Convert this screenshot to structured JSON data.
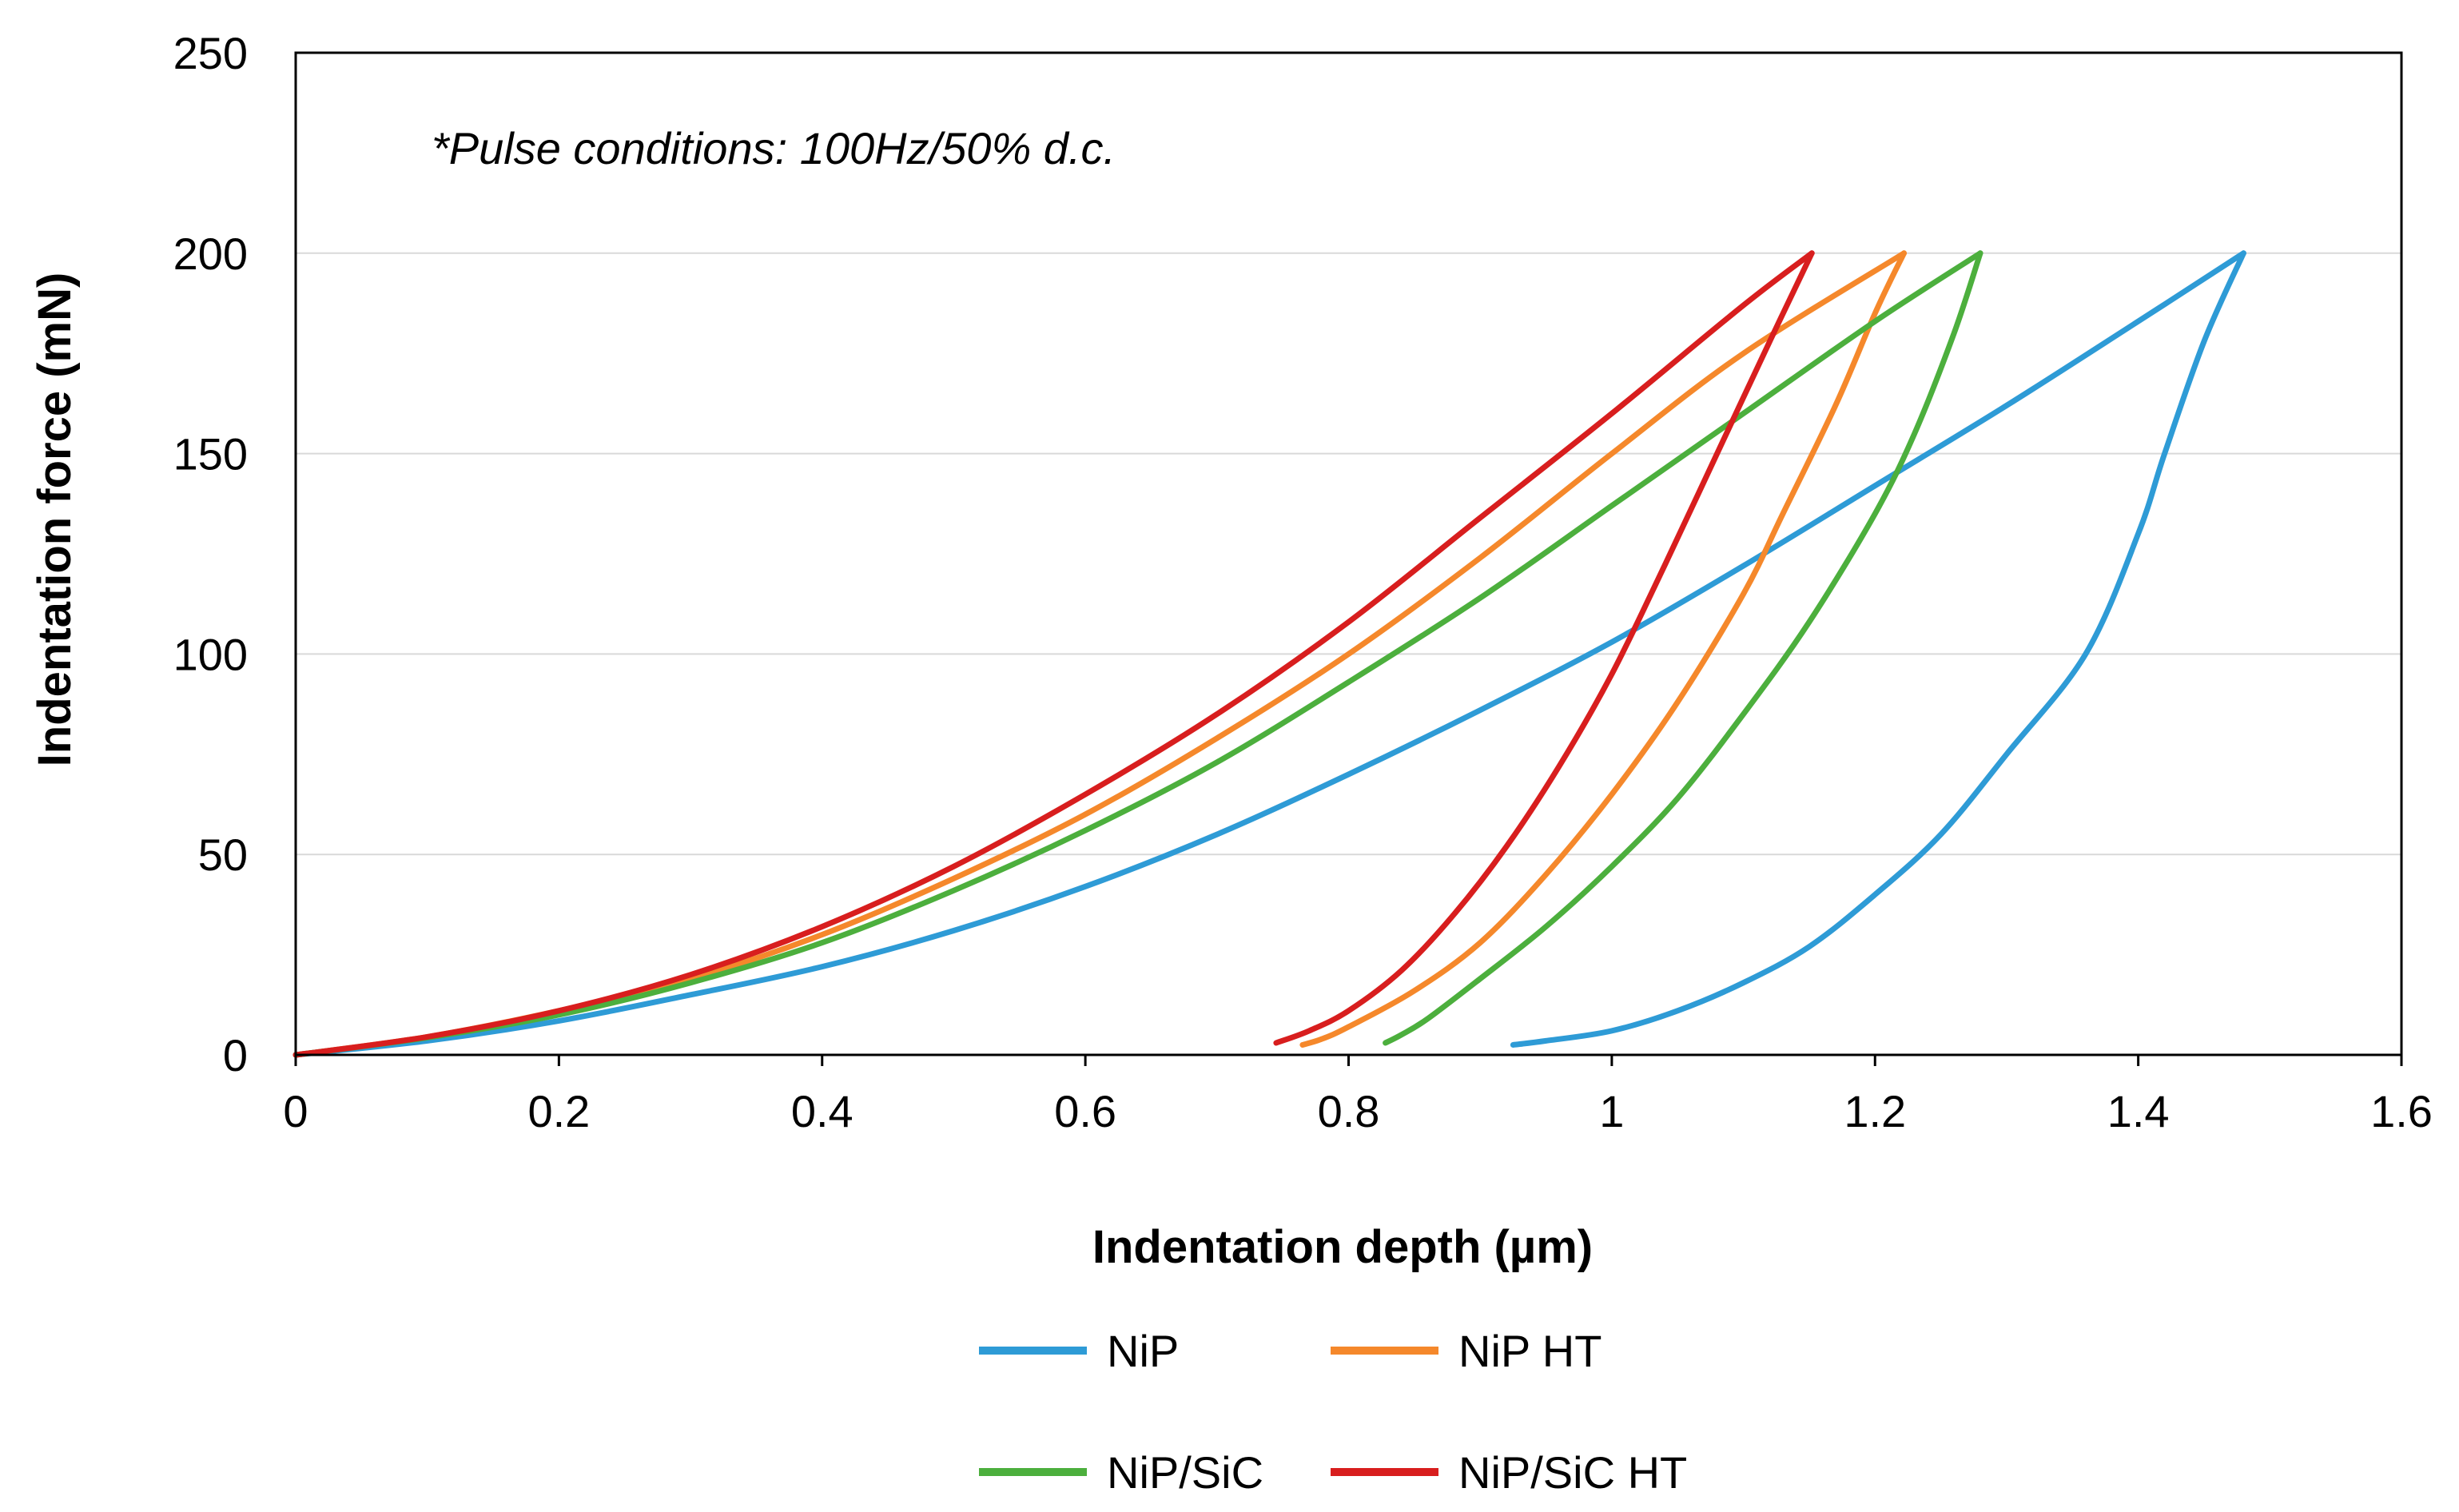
{
  "chart_data": {
    "type": "line",
    "title": "",
    "annotation": "*Pulse conditions: 100Hz/50% d.c.",
    "xlabel": "Indentation depth (µm)",
    "ylabel": "Indentation force (mN)",
    "xlim": [
      0,
      1.6
    ],
    "ylim": [
      0,
      250
    ],
    "xticks": [
      0,
      0.2,
      0.4,
      0.6,
      0.8,
      1.0,
      1.2,
      1.4,
      1.6
    ],
    "xtick_labels": [
      "0",
      "0.2",
      "0.4",
      "0.6",
      "0.8",
      "1",
      "1.2",
      "1.4",
      "1.6"
    ],
    "yticks": [
      0,
      50,
      100,
      150,
      200,
      250
    ],
    "ytick_labels": [
      "0",
      "50",
      "100",
      "150",
      "200",
      "250"
    ],
    "grid": "horizontal",
    "legend_position": "bottom",
    "series": [
      {
        "name": "NiP",
        "color": "#2e9bd6",
        "loading": [
          [
            0,
            0
          ],
          [
            0.1,
            3.5
          ],
          [
            0.2,
            8.5
          ],
          [
            0.3,
            15
          ],
          [
            0.4,
            22
          ],
          [
            0.5,
            31
          ],
          [
            0.6,
            42
          ],
          [
            0.7,
            55
          ],
          [
            0.8,
            70
          ],
          [
            0.9,
            86
          ],
          [
            1.0,
            103
          ],
          [
            1.1,
            122
          ],
          [
            1.2,
            142
          ],
          [
            1.3,
            162
          ],
          [
            1.4,
            183
          ],
          [
            1.48,
            200
          ]
        ],
        "unloading": [
          [
            1.48,
            200
          ],
          [
            1.45,
            178
          ],
          [
            1.42,
            150
          ],
          [
            1.4,
            130
          ],
          [
            1.36,
            100
          ],
          [
            1.3,
            75
          ],
          [
            1.25,
            55
          ],
          [
            1.2,
            40
          ],
          [
            1.15,
            27
          ],
          [
            1.1,
            18
          ],
          [
            1.05,
            11
          ],
          [
            1.0,
            6
          ],
          [
            0.95,
            3.5
          ],
          [
            0.925,
            2.5
          ]
        ]
      },
      {
        "name": "NiP HT",
        "color": "#f5882b",
        "loading": [
          [
            0,
            0
          ],
          [
            0.1,
            4.5
          ],
          [
            0.2,
            11
          ],
          [
            0.3,
            19
          ],
          [
            0.4,
            30
          ],
          [
            0.5,
            44
          ],
          [
            0.6,
            60
          ],
          [
            0.7,
            79
          ],
          [
            0.8,
            100
          ],
          [
            0.9,
            124
          ],
          [
            1.0,
            150
          ],
          [
            1.1,
            175
          ],
          [
            1.222,
            200
          ]
        ],
        "unloading": [
          [
            1.222,
            200
          ],
          [
            1.2,
            185
          ],
          [
            1.17,
            162
          ],
          [
            1.13,
            135
          ],
          [
            1.1,
            115
          ],
          [
            1.05,
            88
          ],
          [
            1.0,
            65
          ],
          [
            0.95,
            45
          ],
          [
            0.9,
            28
          ],
          [
            0.85,
            16
          ],
          [
            0.8,
            7
          ],
          [
            0.78,
            4
          ],
          [
            0.765,
            2.5
          ]
        ]
      },
      {
        "name": "NiP/SiC",
        "color": "#4caf3d",
        "loading": [
          [
            0,
            0
          ],
          [
            0.1,
            4.3
          ],
          [
            0.2,
            10
          ],
          [
            0.3,
            18
          ],
          [
            0.4,
            28
          ],
          [
            0.5,
            41
          ],
          [
            0.6,
            56
          ],
          [
            0.7,
            73
          ],
          [
            0.8,
            93
          ],
          [
            0.9,
            114
          ],
          [
            1.0,
            137
          ],
          [
            1.1,
            160
          ],
          [
            1.2,
            183
          ],
          [
            1.28,
            200
          ]
        ],
        "unloading": [
          [
            1.28,
            200
          ],
          [
            1.26,
            180
          ],
          [
            1.23,
            155
          ],
          [
            1.2,
            135
          ],
          [
            1.15,
            108
          ],
          [
            1.1,
            85
          ],
          [
            1.05,
            64
          ],
          [
            1.0,
            47
          ],
          [
            0.95,
            32
          ],
          [
            0.9,
            19
          ],
          [
            0.86,
            9
          ],
          [
            0.84,
            5
          ],
          [
            0.828,
            3
          ]
        ]
      },
      {
        "name": "NiP/SiC HT",
        "color": "#d81e1e",
        "loading": [
          [
            0,
            0
          ],
          [
            0.1,
            4.5
          ],
          [
            0.2,
            11
          ],
          [
            0.3,
            20
          ],
          [
            0.4,
            32
          ],
          [
            0.5,
            47
          ],
          [
            0.6,
            65
          ],
          [
            0.7,
            85
          ],
          [
            0.8,
            108
          ],
          [
            0.9,
            134
          ],
          [
            1.0,
            160
          ],
          [
            1.1,
            187
          ],
          [
            1.152,
            200
          ]
        ],
        "unloading": [
          [
            1.152,
            200
          ],
          [
            1.12,
            178
          ],
          [
            1.08,
            150
          ],
          [
            1.04,
            122
          ],
          [
            1.0,
            95
          ],
          [
            0.96,
            72
          ],
          [
            0.92,
            52
          ],
          [
            0.88,
            35
          ],
          [
            0.84,
            21
          ],
          [
            0.8,
            11
          ],
          [
            0.77,
            6
          ],
          [
            0.745,
            3
          ]
        ]
      }
    ]
  }
}
